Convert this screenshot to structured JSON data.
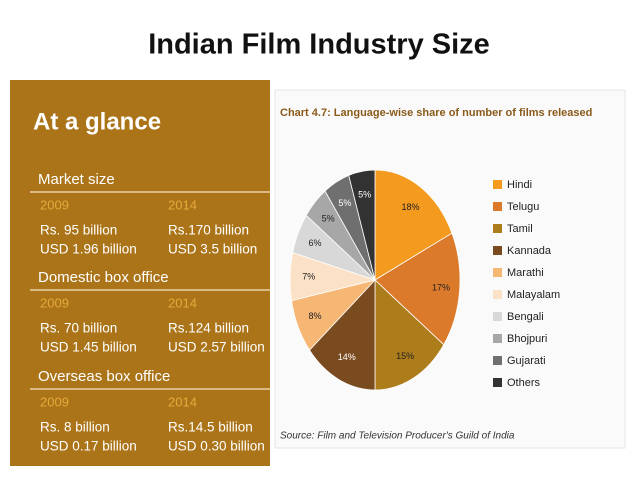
{
  "title": "Indian Film Industry Size",
  "glance": {
    "title": "At a glance",
    "sections": [
      {
        "heading": "Market size",
        "years": [
          "2009",
          "2014"
        ],
        "rows": [
          [
            "Rs. 95 billion",
            "Rs.170 billion"
          ],
          [
            "USD 1.96 billion",
            "USD 3.5 billion"
          ]
        ]
      },
      {
        "heading": "Domestic box office",
        "years": [
          "2009",
          "2014"
        ],
        "rows": [
          [
            "Rs. 70 billion",
            "Rs.124 billion"
          ],
          [
            "USD 1.45 billion",
            "USD 2.57 billion"
          ]
        ]
      },
      {
        "heading": "Overseas box office",
        "years": [
          "2009",
          "2014"
        ],
        "rows": [
          [
            "Rs. 8 billion",
            "Rs.14.5 billion"
          ],
          [
            "USD 0.17 billion",
            "USD 0.30 billion"
          ]
        ]
      }
    ]
  },
  "chart_data": {
    "type": "pie",
    "title": "Chart 4.7: Language-wise share of number of films released",
    "categories": [
      "Hindi",
      "Telugu",
      "Tamil",
      "Kannada",
      "Marathi",
      "Malayalam",
      "Bengali",
      "Bhojpuri",
      "Gujarati",
      "Others"
    ],
    "values": [
      18,
      17,
      15,
      14,
      8,
      7,
      6,
      5,
      5,
      5
    ],
    "value_labels": [
      "18%",
      "17%",
      "15%",
      "14%",
      "8%",
      "7%",
      "6%",
      "5%",
      "5%",
      "5%"
    ],
    "colors": [
      "#f39a1f",
      "#dc7a2c",
      "#ad7d1c",
      "#7b4b20",
      "#f6b775",
      "#fbe2c6",
      "#d8d8d8",
      "#a7a7a7",
      "#6f6f6f",
      "#323232"
    ],
    "legend": "right",
    "source": "Source: Film and Television Producer's Guild of India"
  }
}
